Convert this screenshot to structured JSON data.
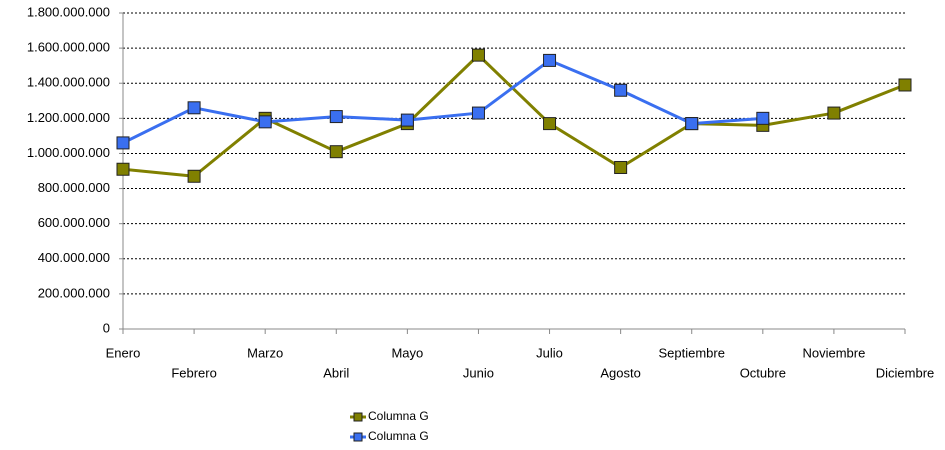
{
  "chart_data": {
    "type": "line",
    "categories": [
      "Enero",
      "Febrero",
      "Marzo",
      "Abril",
      "Mayo",
      "Junio",
      "Julio",
      "Agosto",
      "Septiembre",
      "Octubre",
      "Noviembre",
      "Diciembre"
    ],
    "series": [
      {
        "name": "Columna G",
        "color": "#808000",
        "values": [
          910000000,
          870000000,
          1200000000,
          1010000000,
          1170000000,
          1560000000,
          1170000000,
          920000000,
          1170000000,
          1160000000,
          1230000000,
          1390000000
        ]
      },
      {
        "name": "Columna G",
        "color": "#3a6ff0",
        "values": [
          1060000000,
          1260000000,
          1180000000,
          1210000000,
          1190000000,
          1230000000,
          1530000000,
          1360000000,
          1170000000,
          1200000000,
          null,
          null
        ]
      }
    ],
    "ylim": [
      0,
      1800000000
    ],
    "yticks": [
      0,
      {
        "value": 200000000,
        "label": "200.000.000"
      },
      {
        "value": 400000000,
        "label": "400.000.000"
      },
      {
        "value": 600000000,
        "label": "600.000.000"
      },
      {
        "value": 800000000,
        "label": "800.000.000"
      },
      {
        "value": 1000000000,
        "label": "1.000.000.000"
      },
      {
        "value": 1200000000,
        "label": "1.200.000.000"
      },
      {
        "value": 1400000000,
        "label": "1.400.000.000"
      },
      {
        "value": 1600000000,
        "label": "1.600.000.000"
      },
      {
        "value": 1800000000,
        "label": "1.800.000.000"
      }
    ],
    "grid": true
  }
}
